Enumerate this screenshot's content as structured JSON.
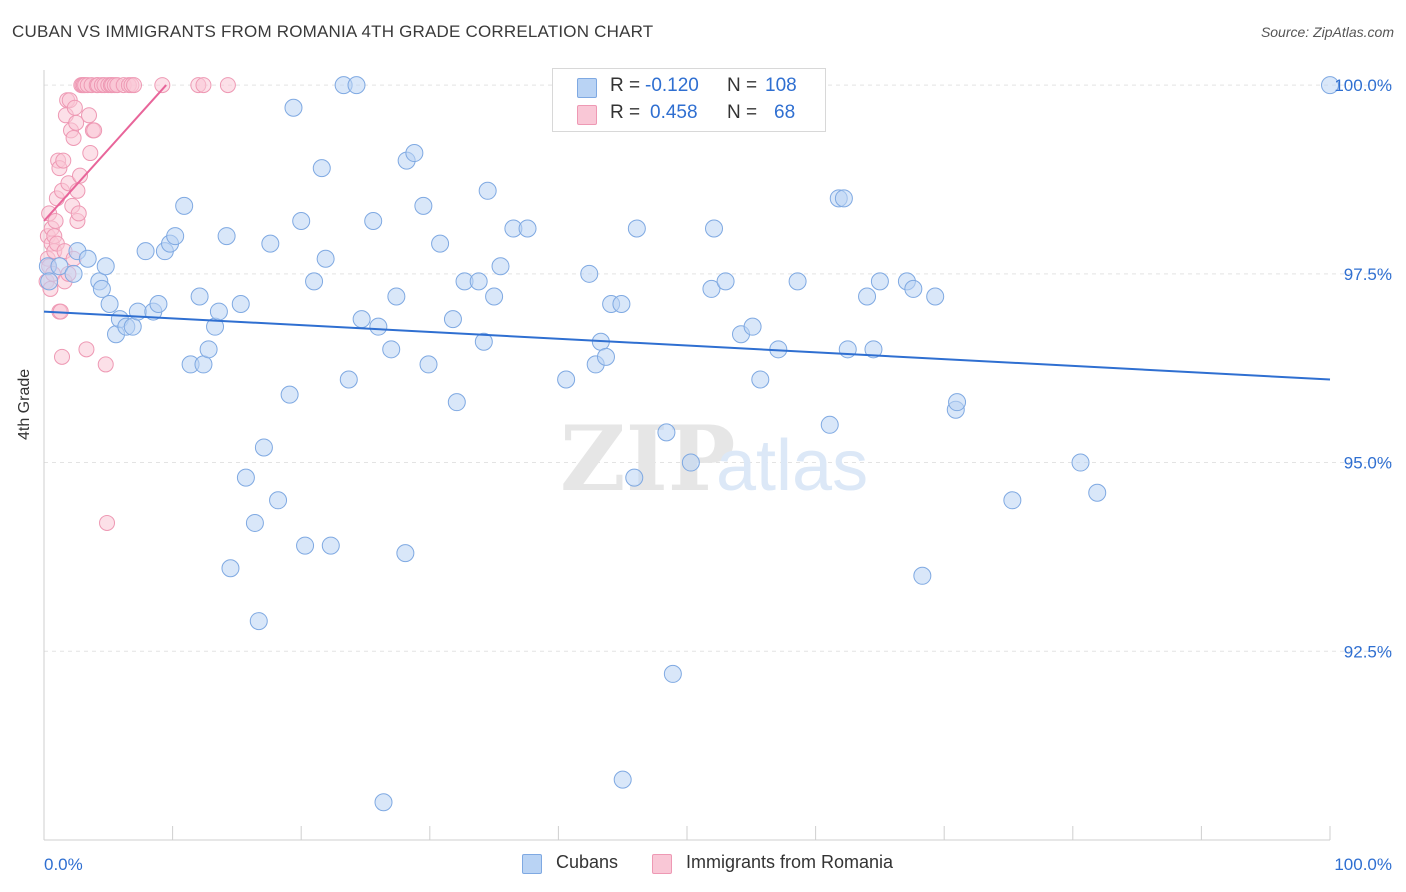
{
  "title": "CUBAN VS IMMIGRANTS FROM ROMANIA 4TH GRADE CORRELATION CHART",
  "source": "Source: ZipAtlas.com",
  "watermark": {
    "zip": "ZIP",
    "atlas": "atlas"
  },
  "legend": {
    "r_label": "R =",
    "n_label": "N =",
    "rows": [
      {
        "name": "Cubans",
        "r": "-0.120",
        "n": "108"
      },
      {
        "name": "Immigrants from Romania",
        "r": "0.458",
        "n": "68"
      }
    ]
  },
  "colors": {
    "blue_fill": "#b9d3f4",
    "blue_stroke": "#7fa9e2",
    "blue_line": "#2f6fd1",
    "pink_fill": "#f9c7d6",
    "pink_stroke": "#ee99b4",
    "pink_line": "#e8659a",
    "axis_text": "#2f6fd1",
    "grid": "#e3e3e3"
  },
  "chart_data": {
    "type": "scatter",
    "title": "CUBAN VS IMMIGRANTS FROM ROMANIA 4TH GRADE CORRELATION CHART",
    "xlabel": "",
    "ylabel": "4th Grade",
    "xlim": [
      0,
      100
    ],
    "ylim": [
      90.0,
      100.2
    ],
    "x_tick_labels": [
      "0.0%",
      "100.0%"
    ],
    "y_ticks": [
      92.5,
      95.0,
      97.5,
      100.0
    ],
    "y_tick_labels": [
      "92.5%",
      "95.0%",
      "97.5%",
      "100.0%"
    ],
    "grid": true,
    "series": [
      {
        "name": "Cubans",
        "r": -0.12,
        "n": 108,
        "trend": {
          "x": [
            0,
            100
          ],
          "y": [
            97.0,
            96.1
          ]
        },
        "points": [
          [
            0.3,
            97.6
          ],
          [
            0.4,
            97.4
          ],
          [
            1.2,
            97.6
          ],
          [
            2.3,
            97.5
          ],
          [
            2.6,
            97.8
          ],
          [
            3.4,
            97.7
          ],
          [
            4.3,
            97.4
          ],
          [
            4.5,
            97.3
          ],
          [
            4.8,
            97.6
          ],
          [
            5.1,
            97.1
          ],
          [
            5.6,
            96.7
          ],
          [
            5.9,
            96.9
          ],
          [
            6.4,
            96.8
          ],
          [
            6.9,
            96.8
          ],
          [
            7.3,
            97.0
          ],
          [
            7.9,
            97.8
          ],
          [
            8.5,
            97.0
          ],
          [
            8.9,
            97.1
          ],
          [
            9.4,
            97.8
          ],
          [
            9.8,
            97.9
          ],
          [
            10.2,
            98.0
          ],
          [
            10.9,
            98.4
          ],
          [
            11.4,
            96.3
          ],
          [
            12.1,
            97.2
          ],
          [
            12.4,
            96.3
          ],
          [
            12.8,
            96.5
          ],
          [
            13.3,
            96.8
          ],
          [
            13.6,
            97.0
          ],
          [
            14.2,
            98.0
          ],
          [
            14.5,
            93.6
          ],
          [
            15.3,
            97.1
          ],
          [
            15.7,
            94.8
          ],
          [
            16.4,
            94.2
          ],
          [
            16.7,
            92.9
          ],
          [
            17.1,
            95.2
          ],
          [
            17.6,
            97.9
          ],
          [
            18.2,
            94.5
          ],
          [
            19.1,
            95.9
          ],
          [
            19.4,
            99.7
          ],
          [
            20.0,
            98.2
          ],
          [
            20.3,
            93.9
          ],
          [
            21.0,
            97.4
          ],
          [
            21.6,
            98.9
          ],
          [
            21.9,
            97.7
          ],
          [
            22.3,
            93.9
          ],
          [
            23.3,
            100.0
          ],
          [
            23.7,
            96.1
          ],
          [
            24.3,
            100.0
          ],
          [
            24.7,
            96.9
          ],
          [
            25.6,
            98.2
          ],
          [
            26.0,
            96.8
          ],
          [
            26.4,
            90.5
          ],
          [
            27.0,
            96.5
          ],
          [
            27.4,
            97.2
          ],
          [
            28.1,
            93.8
          ],
          [
            28.2,
            99.0
          ],
          [
            28.8,
            99.1
          ],
          [
            29.5,
            98.4
          ],
          [
            29.9,
            96.3
          ],
          [
            30.8,
            97.9
          ],
          [
            31.8,
            96.9
          ],
          [
            32.1,
            95.8
          ],
          [
            32.7,
            97.4
          ],
          [
            33.8,
            97.4
          ],
          [
            34.2,
            96.6
          ],
          [
            34.5,
            98.6
          ],
          [
            35.0,
            97.2
          ],
          [
            35.5,
            97.6
          ],
          [
            36.5,
            98.1
          ],
          [
            37.6,
            98.1
          ],
          [
            40.6,
            96.1
          ],
          [
            42.4,
            97.5
          ],
          [
            42.9,
            96.3
          ],
          [
            43.3,
            96.6
          ],
          [
            43.7,
            96.4
          ],
          [
            44.1,
            97.1
          ],
          [
            44.9,
            97.1
          ],
          [
            45.0,
            90.8
          ],
          [
            45.9,
            94.8
          ],
          [
            46.1,
            98.1
          ],
          [
            48.4,
            95.4
          ],
          [
            48.9,
            92.2
          ],
          [
            50.3,
            95.0
          ],
          [
            51.9,
            97.3
          ],
          [
            52.1,
            98.1
          ],
          [
            53.0,
            97.4
          ],
          [
            54.2,
            96.7
          ],
          [
            55.1,
            96.8
          ],
          [
            55.7,
            96.1
          ],
          [
            57.1,
            96.5
          ],
          [
            58.6,
            97.4
          ],
          [
            61.1,
            95.5
          ],
          [
            61.8,
            98.5
          ],
          [
            62.2,
            98.5
          ],
          [
            62.5,
            96.5
          ],
          [
            64.0,
            97.2
          ],
          [
            64.5,
            96.5
          ],
          [
            65.0,
            97.4
          ],
          [
            67.1,
            97.4
          ],
          [
            67.6,
            97.3
          ],
          [
            68.3,
            93.5
          ],
          [
            69.3,
            97.2
          ],
          [
            70.9,
            95.7
          ],
          [
            71.0,
            95.8
          ],
          [
            80.6,
            95.0
          ],
          [
            75.3,
            94.5
          ],
          [
            81.9,
            94.6
          ],
          [
            100.0,
            100.0
          ]
        ]
      },
      {
        "name": "Immigrants from Romania",
        "r": 0.458,
        "n": 68,
        "trend": {
          "x": [
            0,
            9.5
          ],
          "y": [
            98.2,
            100.0
          ]
        },
        "points": [
          [
            0.2,
            97.4
          ],
          [
            0.3,
            97.7
          ],
          [
            0.3,
            98.0
          ],
          [
            0.4,
            98.3
          ],
          [
            0.4,
            97.6
          ],
          [
            0.5,
            97.3
          ],
          [
            0.6,
            97.9
          ],
          [
            0.6,
            98.1
          ],
          [
            0.7,
            97.5
          ],
          [
            0.8,
            98.0
          ],
          [
            0.8,
            97.8
          ],
          [
            0.9,
            98.2
          ],
          [
            1.0,
            98.5
          ],
          [
            1.0,
            97.9
          ],
          [
            1.1,
            99.0
          ],
          [
            1.2,
            98.9
          ],
          [
            1.2,
            97.0
          ],
          [
            1.3,
            97.0
          ],
          [
            1.4,
            96.4
          ],
          [
            1.4,
            98.6
          ],
          [
            1.5,
            99.0
          ],
          [
            1.6,
            97.8
          ],
          [
            1.6,
            97.4
          ],
          [
            1.7,
            99.6
          ],
          [
            1.8,
            99.8
          ],
          [
            1.9,
            98.7
          ],
          [
            1.9,
            97.5
          ],
          [
            2.0,
            99.8
          ],
          [
            2.1,
            99.4
          ],
          [
            2.2,
            98.4
          ],
          [
            2.3,
            99.3
          ],
          [
            2.3,
            97.7
          ],
          [
            2.4,
            99.7
          ],
          [
            2.5,
            99.5
          ],
          [
            2.6,
            98.2
          ],
          [
            2.6,
            98.6
          ],
          [
            2.7,
            98.3
          ],
          [
            2.9,
            100.0
          ],
          [
            3.0,
            100.0
          ],
          [
            3.1,
            100.0
          ],
          [
            3.2,
            100.0
          ],
          [
            3.3,
            96.5
          ],
          [
            3.4,
            100.0
          ],
          [
            3.5,
            99.6
          ],
          [
            3.6,
            99.1
          ],
          [
            3.7,
            100.0
          ],
          [
            3.8,
            99.4
          ],
          [
            3.9,
            99.4
          ],
          [
            4.1,
            100.0
          ],
          [
            4.2,
            100.0
          ],
          [
            4.5,
            100.0
          ],
          [
            4.7,
            100.0
          ],
          [
            4.8,
            96.3
          ],
          [
            4.9,
            94.2
          ],
          [
            5.0,
            100.0
          ],
          [
            5.2,
            100.0
          ],
          [
            5.3,
            100.0
          ],
          [
            5.5,
            100.0
          ],
          [
            5.7,
            100.0
          ],
          [
            6.2,
            100.0
          ],
          [
            6.6,
            100.0
          ],
          [
            6.8,
            100.0
          ],
          [
            7.0,
            100.0
          ],
          [
            9.2,
            100.0
          ],
          [
            12.0,
            100.0
          ],
          [
            12.4,
            100.0
          ],
          [
            14.3,
            100.0
          ],
          [
            2.8,
            98.8
          ]
        ]
      }
    ]
  }
}
